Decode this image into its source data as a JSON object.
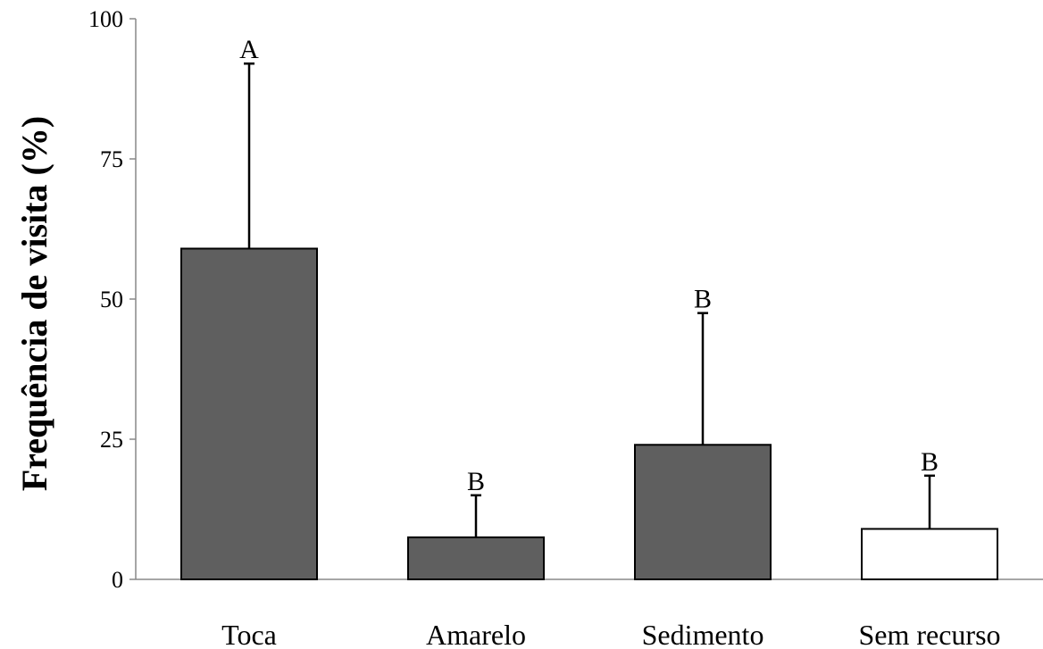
{
  "chart_data": {
    "type": "bar",
    "title": "",
    "xlabel": "",
    "ylabel": "Frequência de visita (%)",
    "ylim": [
      0,
      100
    ],
    "yticks": [
      0,
      25,
      50,
      75,
      100
    ],
    "ytick_labels": [
      "0",
      "25",
      "50",
      "75",
      "100"
    ],
    "categories": [
      "Toca",
      "Amarelo",
      "Sedimento",
      "Sem recurso"
    ],
    "values": [
      59,
      7.5,
      24,
      9
    ],
    "error_upper": [
      92,
      15,
      47.5,
      18.5
    ],
    "significance": [
      "A",
      "B",
      "B",
      "B"
    ],
    "bar_colors": [
      "#5f5f5f",
      "#5f5f5f",
      "#5f5f5f",
      "#ffffff"
    ],
    "bar_edge": "#000000",
    "grid": false,
    "legend": "none"
  }
}
